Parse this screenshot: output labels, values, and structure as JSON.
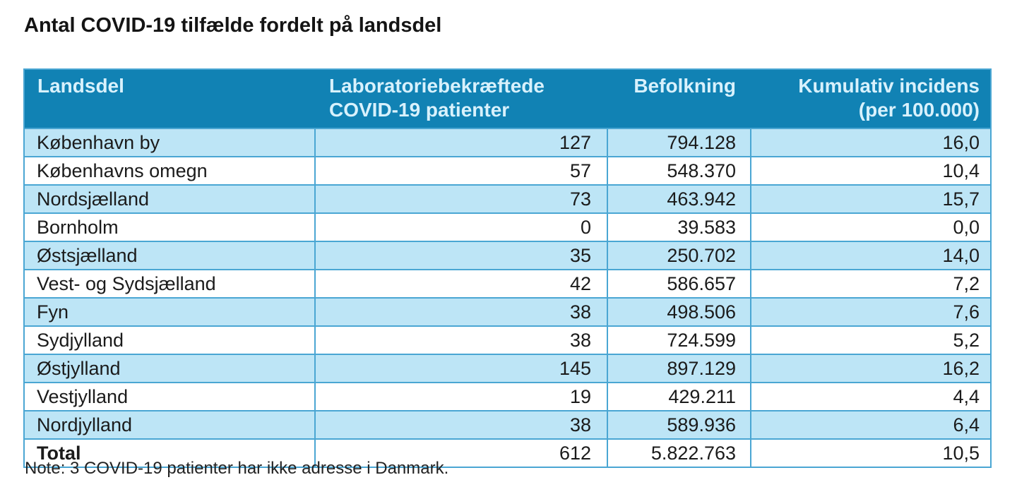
{
  "title": "Antal COVID-19 tilfælde fordelt på landsdel",
  "note": "Note: 3 COVID-19 patienter har ikke adresse i Danmark.",
  "colors": {
    "header_bg": "#1182b4",
    "header_text": "#d8f1fc",
    "row_alt_bg": "#bde5f6",
    "row_bg": "#ffffff",
    "grid_border": "#4aa6d3",
    "body_text": "#1b1b1b"
  },
  "table": {
    "headers": [
      {
        "label": "Landsdel"
      },
      {
        "label": "Laboratoriebekræftede\nCOVID-19 patienter"
      },
      {
        "label": "Befolkning"
      },
      {
        "label": "Kumulativ incidens\n(per 100.000)"
      }
    ],
    "rows": [
      [
        "København by",
        "127",
        "794.128",
        "16,0"
      ],
      [
        "Københavns omegn",
        "57",
        "548.370",
        "10,4"
      ],
      [
        "Nordsjælland",
        "73",
        "463.942",
        "15,7"
      ],
      [
        "Bornholm",
        "0",
        "39.583",
        "0,0"
      ],
      [
        "Østsjælland",
        "35",
        "250.702",
        "14,0"
      ],
      [
        "Vest- og Sydsjælland",
        "42",
        "586.657",
        "7,2"
      ],
      [
        "Fyn",
        "38",
        "498.506",
        "7,6"
      ],
      [
        "Sydjylland",
        "38",
        "724.599",
        "5,2"
      ],
      [
        "Østjylland",
        "145",
        "897.129",
        "16,2"
      ],
      [
        "Vestjylland",
        "19",
        "429.211",
        "4,4"
      ],
      [
        "Nordjylland",
        "38",
        "589.936",
        "6,4"
      ],
      [
        "Total",
        "612",
        "5.822.763",
        "10,5"
      ]
    ]
  }
}
